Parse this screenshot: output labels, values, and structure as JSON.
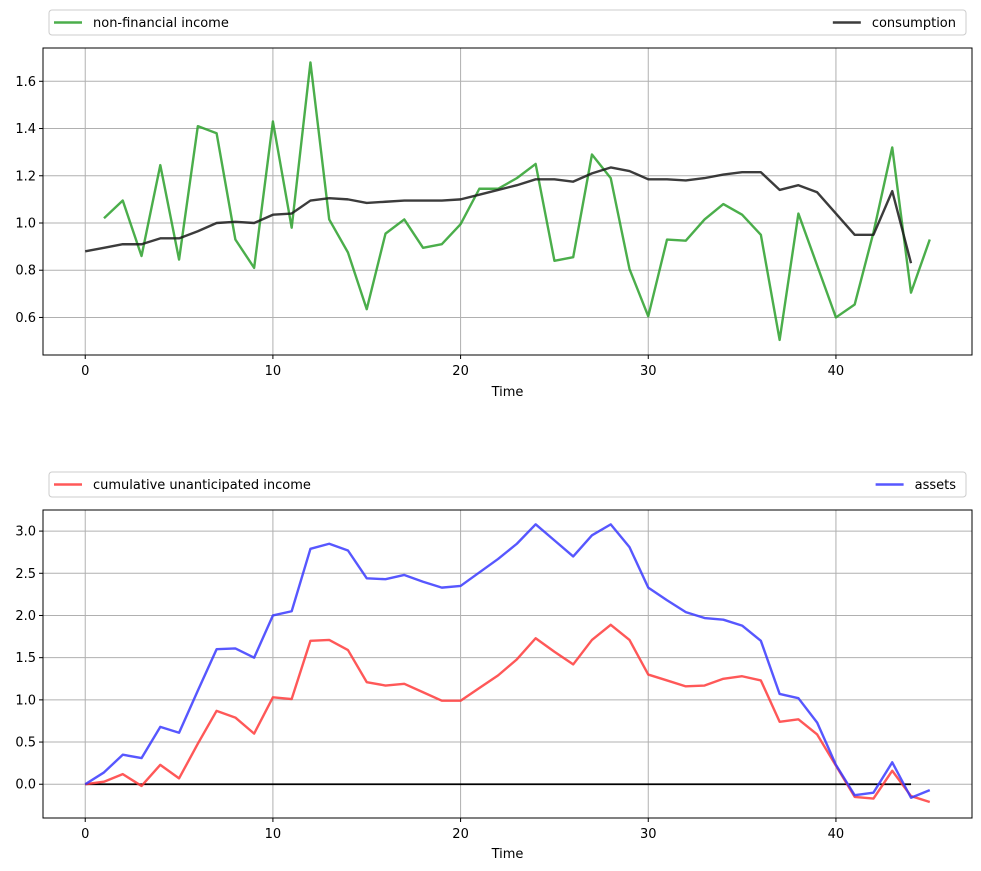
{
  "chart_data": [
    {
      "type": "line",
      "xlabel": "Time",
      "xlim": [
        -2.25,
        47.25
      ],
      "ylim": [
        0.441,
        1.741
      ],
      "xticks": [
        0,
        10,
        20,
        30,
        40
      ],
      "yticks": [
        0.6,
        0.8,
        1.0,
        1.2,
        1.4,
        1.6
      ],
      "ytick_labels": [
        "0.6",
        "0.8",
        "1.0",
        "1.2",
        "1.4",
        "1.6"
      ],
      "grid": true,
      "legend_placement": "top, outside (two columns)",
      "series": [
        {
          "name": "non-financial income",
          "color": "#2ca02c",
          "x": [
            1,
            2,
            3,
            4,
            5,
            6,
            7,
            8,
            9,
            10,
            11,
            12,
            13,
            14,
            15,
            16,
            17,
            18,
            19,
            20,
            21,
            22,
            23,
            24,
            25,
            26,
            27,
            28,
            29,
            30,
            31,
            32,
            33,
            34,
            35,
            36,
            37,
            38,
            39,
            40,
            41,
            42,
            43,
            44,
            45
          ],
          "values": [
            1.02,
            1.095,
            0.86,
            1.245,
            0.845,
            1.41,
            1.38,
            0.93,
            0.81,
            1.43,
            0.98,
            1.68,
            1.015,
            0.875,
            0.635,
            0.955,
            1.015,
            0.895,
            0.91,
            0.995,
            1.145,
            1.145,
            1.19,
            1.25,
            0.84,
            0.855,
            1.29,
            1.19,
            0.805,
            0.605,
            0.93,
            0.925,
            1.015,
            1.08,
            1.035,
            0.95,
            0.505,
            1.04,
            0.82,
            0.6,
            0.655,
            0.96,
            1.32,
            0.705,
            0.93
          ]
        },
        {
          "name": "consumption",
          "color": "#1a1a1a",
          "x": [
            0,
            1,
            2,
            3,
            4,
            5,
            6,
            7,
            8,
            9,
            10,
            11,
            12,
            13,
            14,
            15,
            16,
            17,
            18,
            19,
            20,
            21,
            22,
            23,
            24,
            25,
            26,
            27,
            28,
            29,
            30,
            31,
            32,
            33,
            34,
            35,
            36,
            37,
            38,
            39,
            40,
            41,
            42,
            43,
            44
          ],
          "values": [
            0.88,
            0.895,
            0.91,
            0.91,
            0.935,
            0.935,
            0.965,
            1.0,
            1.005,
            1.0,
            1.035,
            1.04,
            1.095,
            1.105,
            1.1,
            1.085,
            1.09,
            1.095,
            1.095,
            1.095,
            1.1,
            1.12,
            1.14,
            1.16,
            1.185,
            1.185,
            1.175,
            1.21,
            1.235,
            1.22,
            1.185,
            1.185,
            1.18,
            1.19,
            1.205,
            1.215,
            1.215,
            1.14,
            1.16,
            1.13,
            1.04,
            0.95,
            0.95,
            1.135,
            0.83
          ]
        }
      ]
    },
    {
      "type": "line",
      "xlabel": "Time",
      "xlim": [
        -2.25,
        47.25
      ],
      "ylim": [
        -0.4,
        3.25
      ],
      "xticks": [
        0,
        10,
        20,
        30,
        40
      ],
      "yticks": [
        0.0,
        0.5,
        1.0,
        1.5,
        2.0,
        2.5,
        3.0
      ],
      "ytick_labels": [
        "0.0",
        "0.5",
        "1.0",
        "1.5",
        "2.0",
        "2.5",
        "3.0"
      ],
      "grid": true,
      "legend_placement": "top, outside (two columns)",
      "series": [
        {
          "name": "cumulative unanticipated income",
          "color": "#ff3b3b",
          "x": [
            0,
            1,
            2,
            3,
            4,
            5,
            6,
            7,
            8,
            9,
            10,
            11,
            12,
            13,
            14,
            15,
            16,
            17,
            18,
            19,
            20,
            21,
            22,
            23,
            24,
            25,
            26,
            27,
            28,
            29,
            30,
            31,
            32,
            33,
            34,
            35,
            36,
            37,
            38,
            39,
            40,
            41,
            42,
            43,
            44,
            45
          ],
          "values": [
            0.0,
            0.03,
            0.12,
            -0.02,
            0.23,
            0.07,
            0.48,
            0.87,
            0.79,
            0.6,
            1.03,
            1.01,
            1.7,
            1.71,
            1.59,
            1.21,
            1.17,
            1.19,
            1.09,
            0.99,
            0.99,
            1.14,
            1.29,
            1.48,
            1.73,
            1.57,
            1.42,
            1.71,
            1.89,
            1.71,
            1.3,
            1.23,
            1.16,
            1.17,
            1.25,
            1.28,
            1.23,
            0.74,
            0.77,
            0.59,
            0.22,
            -0.15,
            -0.17,
            0.16,
            -0.14,
            -0.21
          ]
        },
        {
          "name": "assets",
          "color": "#3a3aff",
          "x": [
            0,
            1,
            2,
            3,
            4,
            5,
            6,
            7,
            8,
            9,
            10,
            11,
            12,
            13,
            14,
            15,
            16,
            17,
            18,
            19,
            20,
            21,
            22,
            23,
            24,
            25,
            26,
            27,
            28,
            29,
            30,
            31,
            32,
            33,
            34,
            35,
            36,
            37,
            38,
            39,
            40,
            41,
            42,
            43,
            44,
            45
          ],
          "values": [
            0.0,
            0.14,
            0.35,
            0.31,
            0.68,
            0.61,
            1.11,
            1.6,
            1.61,
            1.5,
            2.0,
            2.05,
            2.79,
            2.85,
            2.77,
            2.44,
            2.43,
            2.48,
            2.4,
            2.33,
            2.35,
            2.51,
            2.67,
            2.85,
            3.08,
            2.89,
            2.7,
            2.95,
            3.08,
            2.81,
            2.33,
            2.18,
            2.04,
            1.97,
            1.95,
            1.88,
            1.7,
            1.07,
            1.02,
            0.73,
            0.23,
            -0.13,
            -0.1,
            0.26,
            -0.16,
            -0.07
          ]
        }
      ],
      "reference_line": {
        "y": 0.0,
        "x_range": [
          0,
          44
        ],
        "color": "#000000"
      }
    }
  ]
}
